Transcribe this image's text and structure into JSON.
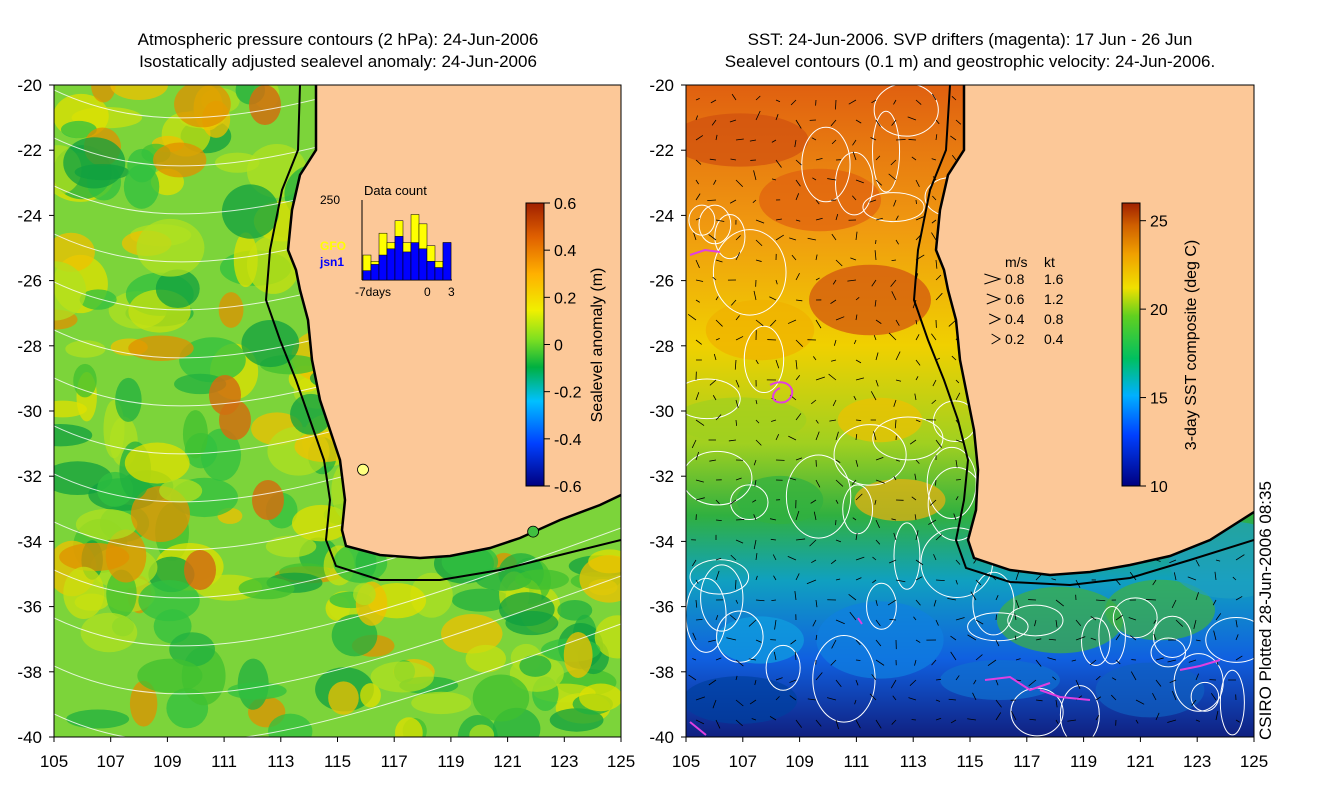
{
  "left_panel": {
    "title_line1": "Atmospheric pressure contours (2 hPa): 24-Jun-2006",
    "title_line2": "Isostatically adjusted sealevel anomaly: 24-Jun-2006",
    "x_ticks": [
      "105",
      "107",
      "109",
      "111",
      "113",
      "115",
      "117",
      "119",
      "121",
      "123",
      "125"
    ],
    "y_ticks": [
      "-20",
      "-22",
      "-24",
      "-26",
      "-28",
      "-30",
      "-32",
      "-34",
      "-36",
      "-38",
      "-40"
    ],
    "colorbar": {
      "label": "Sealevel anomaly (m)",
      "ticks": [
        "0.6",
        "0.4",
        "0.2",
        "0",
        "-0.2",
        "-0.4",
        "-0.6"
      ],
      "range": [
        -0.6,
        0.6
      ]
    },
    "inset": {
      "title": "Data count",
      "max_label": "250",
      "x_labels": [
        "-7days",
        "0",
        "3"
      ],
      "legend": [
        {
          "name": "GFO",
          "color": "#ffff00"
        },
        {
          "name": "jsn1",
          "color": "#0000ff"
        }
      ],
      "gfo_counts": [
        80,
        60,
        150,
        120,
        190,
        120,
        210,
        180,
        110,
        60,
        120
      ],
      "jsn1_counts": [
        30,
        50,
        80,
        100,
        140,
        90,
        120,
        100,
        60,
        40,
        120
      ]
    },
    "markers": [
      {
        "name": "yellow-marker",
        "lon": 115.9,
        "lat": -31.8,
        "color": "#ffff80"
      },
      {
        "name": "green-marker",
        "lon": 121.9,
        "lat": -33.7,
        "color": "#40c040"
      }
    ]
  },
  "right_panel": {
    "title_line1": "SST: 24-Jun-2006. SVP drifters (magenta): 17 Jun - 26 Jun",
    "title_line2": "Sealevel contours (0.1 m) and geostrophic velocity: 24-Jun-2006.",
    "x_ticks": [
      "105",
      "107",
      "109",
      "111",
      "113",
      "115",
      "117",
      "119",
      "121",
      "123",
      "125"
    ],
    "y_ticks": [
      "-20",
      "-22",
      "-24",
      "-26",
      "-28",
      "-30",
      "-32",
      "-34",
      "-36",
      "-38",
      "-40"
    ],
    "colorbar": {
      "label": "3-day SST composite (deg C)",
      "ticks": [
        "25",
        "20",
        "15",
        "10"
      ],
      "range": [
        10,
        26
      ]
    },
    "velocity_legend": {
      "header_ms": "m/s",
      "header_kt": "kt",
      "rows": [
        {
          "ms": "0.8",
          "kt": "1.6"
        },
        {
          "ms": "0.6",
          "kt": "1.2"
        },
        {
          "ms": "0.4",
          "kt": "0.8"
        },
        {
          "ms": "0.2",
          "kt": "0.4"
        }
      ]
    }
  },
  "credit": "CSIRO Plotted 28-Jun-2006 08:35",
  "colors": {
    "land": "#fcc898",
    "coast": "#000000",
    "contour": "#ffffff",
    "drifter": "#e040e0"
  }
}
